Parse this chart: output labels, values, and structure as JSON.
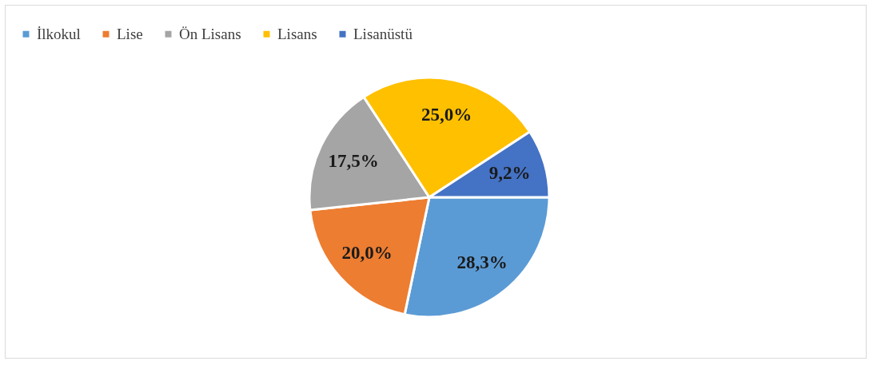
{
  "chart_data": {
    "type": "pie",
    "categories": [
      "İlkokul",
      "Lise",
      "Ön Lisans",
      "Lisans",
      "Lisanüstü"
    ],
    "values": [
      28.3,
      20.0,
      17.5,
      25.0,
      9.2
    ],
    "colors": [
      "#5b9bd5",
      "#ed7d31",
      "#a5a5a5",
      "#ffc000",
      "#4472c4"
    ],
    "value_labels": [
      "28,3%",
      "20,0%",
      "17,5%",
      "25,0%",
      "9,2%"
    ],
    "legend": "top"
  }
}
